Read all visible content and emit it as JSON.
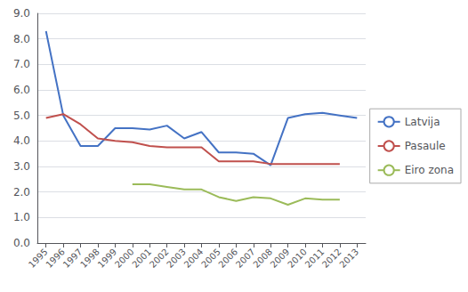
{
  "chart_data": {
    "type": "line",
    "x": [
      1995,
      1996,
      1997,
      1998,
      1999,
      2000,
      2001,
      2002,
      2003,
      2004,
      2005,
      2006,
      2007,
      2008,
      2009,
      2010,
      2011,
      2012,
      2013
    ],
    "series": [
      {
        "name": "Latvija",
        "color": "#4472C4",
        "values": [
          8.3,
          5.0,
          3.8,
          3.8,
          4.5,
          4.5,
          4.45,
          4.6,
          4.1,
          4.35,
          3.55,
          3.55,
          3.5,
          3.05,
          4.9,
          5.05,
          5.1,
          5.0,
          4.9
        ]
      },
      {
        "name": "Pasaule",
        "color": "#C0504D",
        "values": [
          4.9,
          5.05,
          4.65,
          4.1,
          4.0,
          3.95,
          3.8,
          3.75,
          3.75,
          3.75,
          3.2,
          3.2,
          3.2,
          3.1,
          3.1,
          3.1,
          3.1,
          3.1,
          null
        ]
      },
      {
        "name": "Eiro zona",
        "color": "#9BBB59",
        "values": [
          null,
          null,
          null,
          null,
          null,
          2.3,
          2.3,
          2.2,
          2.1,
          2.1,
          1.8,
          1.65,
          1.8,
          1.75,
          1.5,
          1.75,
          1.7,
          1.7,
          null
        ]
      }
    ],
    "xlim": [
      1994.5,
      2013.5
    ],
    "xticks": [
      1995,
      1996,
      1997,
      1998,
      1999,
      2000,
      2001,
      2002,
      2003,
      2004,
      2005,
      2006,
      2007,
      2008,
      2009,
      2010,
      2011,
      2012,
      2013
    ],
    "ylim": [
      0.0,
      9.0
    ],
    "yticks": [
      {
        "value": 0,
        "label": "0.0"
      },
      {
        "value": 1,
        "label": "1.0"
      },
      {
        "value": 2,
        "label": "2.0"
      },
      {
        "value": 3,
        "label": "3.0"
      },
      {
        "value": 4,
        "label": "4.0"
      },
      {
        "value": 5,
        "label": "5.0"
      },
      {
        "value": 6,
        "label": "6.0"
      },
      {
        "value": 7,
        "label": "7.0"
      },
      {
        "value": 8,
        "label": "8.0"
      },
      {
        "value": 9,
        "label": "9.0"
      }
    ],
    "grid": true,
    "legend": "right"
  }
}
